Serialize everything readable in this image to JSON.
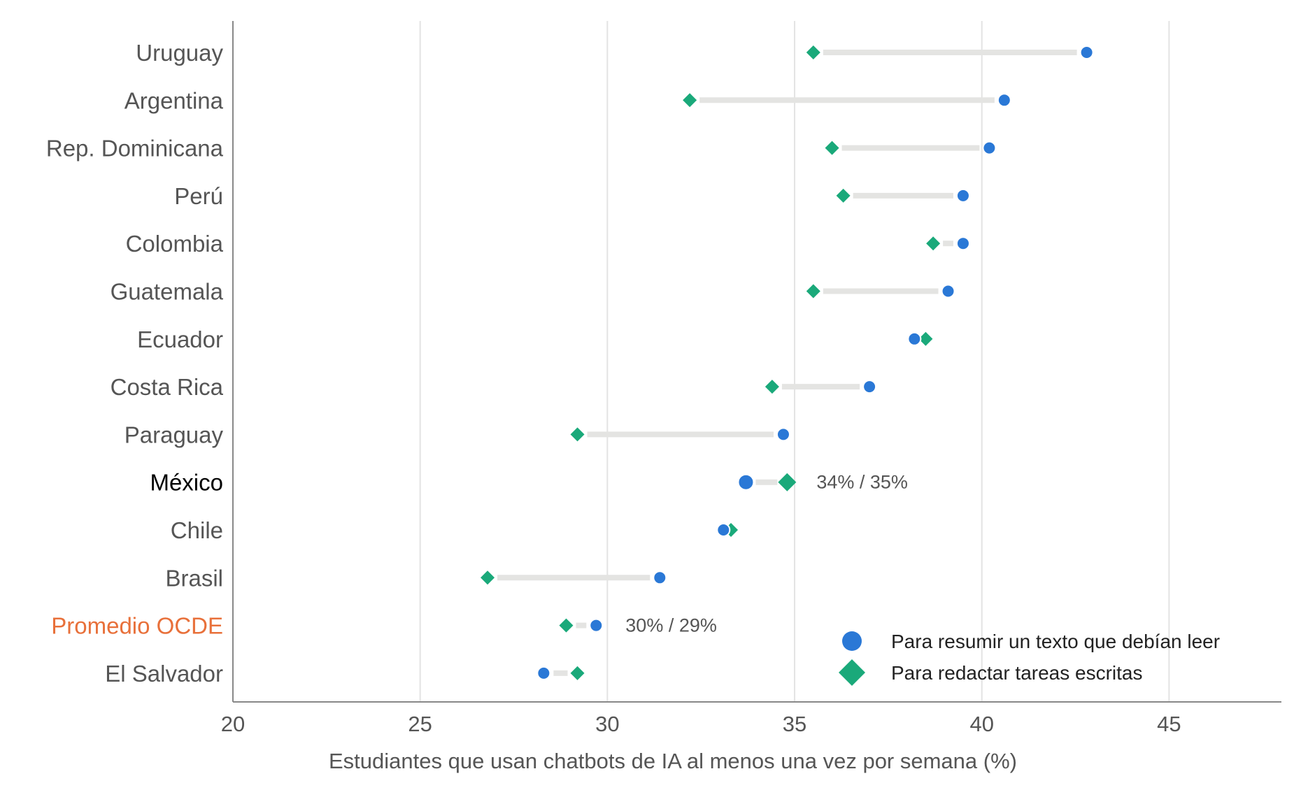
{
  "chart_data": {
    "type": "dumbbell",
    "xlabel": "Estudiantes que usan chatbots de IA al menos una vez por semana (%)",
    "xlim": [
      20,
      48
    ],
    "xticks": [
      20,
      25,
      30,
      35,
      40,
      45
    ],
    "grid": "vertical",
    "legend_position": "bottom-right",
    "colors": {
      "resumir": "#2a78d6",
      "redactar": "#1aa97a",
      "connector": "#e4e4e2",
      "highlight_oecd": "#e8703a",
      "highlight_mexico": "#000000",
      "label_default": "#555555"
    },
    "series": [
      {
        "key": "resumir",
        "name": "Para resumir un texto que debían leer",
        "marker": "circle"
      },
      {
        "key": "redactar",
        "name": "Para redactar tareas escritas",
        "marker": "diamond"
      }
    ],
    "rows": [
      {
        "label": "Uruguay",
        "resumir": 42.8,
        "redactar": 35.5
      },
      {
        "label": "Argentina",
        "resumir": 40.6,
        "redactar": 32.2
      },
      {
        "label": "Rep. Dominicana",
        "resumir": 40.2,
        "redactar": 36.0
      },
      {
        "label": "Perú",
        "resumir": 39.5,
        "redactar": 36.3
      },
      {
        "label": "Colombia",
        "resumir": 39.5,
        "redactar": 38.7
      },
      {
        "label": "Guatemala",
        "resumir": 39.1,
        "redactar": 35.5
      },
      {
        "label": "Ecuador",
        "resumir": 38.2,
        "redactar": 38.5
      },
      {
        "label": "Costa Rica",
        "resumir": 37.0,
        "redactar": 34.4
      },
      {
        "label": "Paraguay",
        "resumir": 34.7,
        "redactar": 29.2
      },
      {
        "label": "México",
        "resumir": 33.7,
        "redactar": 34.8,
        "highlight": "mexico",
        "annotation": "34% / 35%"
      },
      {
        "label": "Chile",
        "resumir": 33.1,
        "redactar": 33.3
      },
      {
        "label": "Brasil",
        "resumir": 31.4,
        "redactar": 26.8
      },
      {
        "label": "Promedio OCDE",
        "resumir": 29.7,
        "redactar": 28.9,
        "highlight": "oecd",
        "annotation": "30% / 29%"
      },
      {
        "label": "El Salvador",
        "resumir": 28.3,
        "redactar": 29.2
      }
    ]
  }
}
